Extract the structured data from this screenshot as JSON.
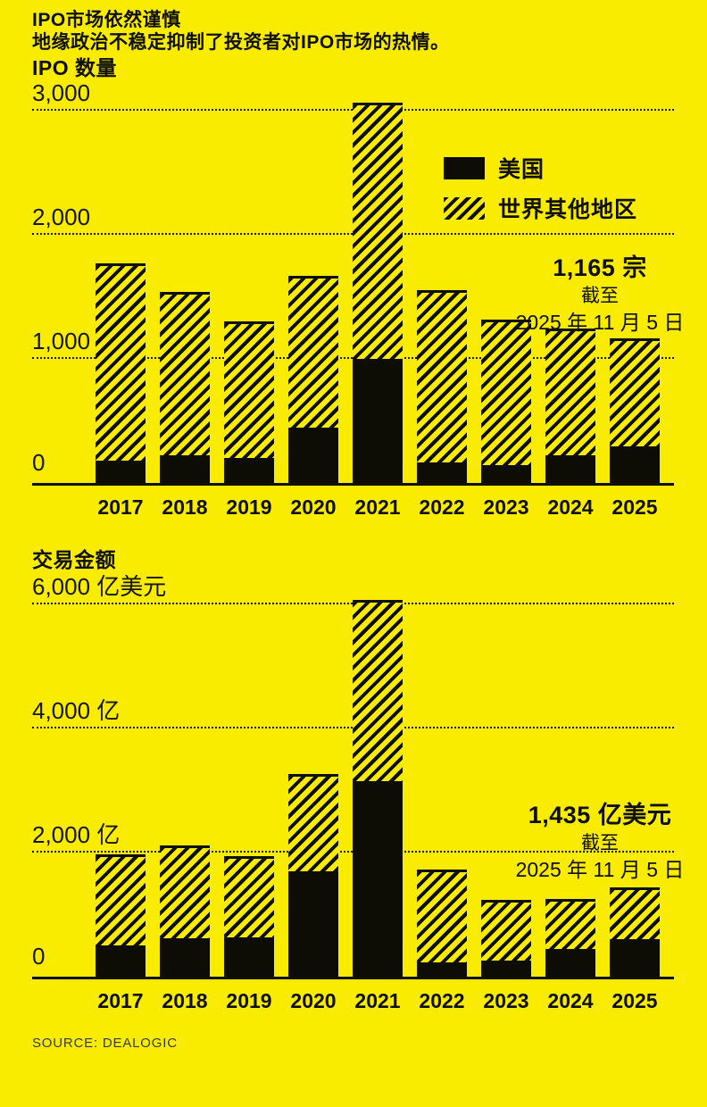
{
  "page": {
    "title": "IPO市场依然谨慎",
    "subtitle": "地缘政治不稳定抑制了投资者对IPO市场的热情。",
    "source": "SOURCE: DEALOGIC"
  },
  "colors": {
    "background": "#F9EC00",
    "ink": "#10100A",
    "source_text": "#3A3A32"
  },
  "legend": {
    "items": [
      {
        "label": "美国",
        "swatch": "solid-black"
      },
      {
        "label": "世界其他地区",
        "swatch": "diagonal-hatch"
      }
    ]
  },
  "chart_data": [
    {
      "type": "bar",
      "stacked": true,
      "title": "IPO 数量",
      "unit": "宗",
      "categories": [
        "2017",
        "2018",
        "2019",
        "2020",
        "2021",
        "2022",
        "2023",
        "2024",
        "2025"
      ],
      "series": [
        {
          "name": "美国",
          "style": "solid-black",
          "values": [
            180,
            225,
            200,
            445,
            1000,
            165,
            145,
            225,
            295
          ]
        },
        {
          "name": "世界其他地区",
          "style": "diagonal-hatch",
          "values": [
            1590,
            1320,
            1100,
            1225,
            2065,
            1390,
            1170,
            1020,
            870
          ]
        }
      ],
      "totals": [
        1770,
        1545,
        1300,
        1670,
        3065,
        1555,
        1315,
        1245,
        1165
      ],
      "yticks": [
        {
          "value": 0,
          "label": "0"
        },
        {
          "value": 1000,
          "label": "1,000"
        },
        {
          "value": 2000,
          "label": "2,000"
        },
        {
          "value": 3000,
          "label": "3,000"
        }
      ],
      "ylim": [
        0,
        3230
      ],
      "grid": "dotted-horizontal",
      "legend_position": "upper-right-inside",
      "annotation": {
        "headline": "1,165 宗",
        "line2": "截至",
        "line3": "2025 年 11 月 5 日"
      }
    },
    {
      "type": "bar",
      "stacked": true,
      "title": "交易金额",
      "unit": "亿美元",
      "categories": [
        "2017",
        "2018",
        "2019",
        "2020",
        "2021",
        "2022",
        "2023",
        "2024",
        "2025"
      ],
      "series": [
        {
          "name": "美国",
          "style": "solid-black",
          "values": [
            500,
            620,
            630,
            1700,
            3150,
            230,
            260,
            445,
            600
          ]
        },
        {
          "name": "世界其他地区",
          "style": "diagonal-hatch",
          "values": [
            1470,
            1495,
            1310,
            1565,
            2920,
            1495,
            980,
            805,
            835
          ]
        }
      ],
      "totals": [
        1970,
        2115,
        1940,
        3265,
        6070,
        1725,
        1240,
        1250,
        1435
      ],
      "yticks": [
        {
          "value": 0,
          "label": "0"
        },
        {
          "value": 2000,
          "label": "2,000 亿"
        },
        {
          "value": 4000,
          "label": "4,000 亿"
        },
        {
          "value": 6000,
          "label": "6,000 亿美元"
        }
      ],
      "ylim": [
        0,
        6460
      ],
      "grid": "dotted-horizontal",
      "annotation": {
        "headline": "1,435 亿美元",
        "line2": "截至",
        "line3": "2025 年 11 月 5 日"
      }
    }
  ]
}
